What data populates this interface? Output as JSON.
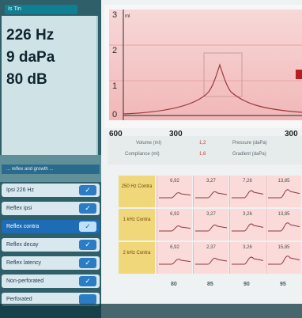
{
  "left_panel": {
    "tab_label": "Is Tin",
    "readout": [
      "226 Hz",
      "9 daPa",
      "80 dB"
    ],
    "list_header": "... reflex and growth ...",
    "items": [
      {
        "label": "Ipsi 226 Hz",
        "checked": true,
        "selected": false
      },
      {
        "label": "Reflex ipsi",
        "checked": true,
        "selected": false
      },
      {
        "label": "Reflex contra",
        "checked": true,
        "selected": true
      },
      {
        "label": "Reflex decay",
        "checked": true,
        "selected": false
      },
      {
        "label": "Reflex latency",
        "checked": true,
        "selected": false
      },
      {
        "label": "Non-perforated",
        "checked": true,
        "selected": false
      },
      {
        "label": "Perforated",
        "checked": false,
        "selected": false
      }
    ]
  },
  "tymp_graph": {
    "y_ticks": [
      "3",
      "2",
      "1",
      "0"
    ],
    "x_ticks": [
      "600",
      "300",
      "300"
    ],
    "y_unit": "ml"
  },
  "summary": {
    "rows": [
      {
        "left": "Volume (ml)",
        "left_value": "1,2",
        "right": "Pressure (daPa)"
      },
      {
        "left": "Compliance (ml)",
        "left_value": "1,6",
        "right": "Gradient (daPa)"
      }
    ]
  },
  "reflex_table": {
    "rows": [
      {
        "label": "250 Hz Contra",
        "values": [
          "6,92",
          "3,27",
          "7,26",
          "13,85"
        ]
      },
      {
        "label": "1 kHz Contra",
        "values": [
          "6,92",
          "3,27",
          "3,26",
          "13,85"
        ]
      },
      {
        "label": "2 kHz Contra",
        "values": [
          "6,92",
          "2,37",
          "3,26",
          "15,85"
        ]
      }
    ],
    "totals": [
      "80",
      "85",
      "90",
      "95"
    ]
  },
  "colors": {
    "accent": "#2a7cc4",
    "curve": "#9a3b3b",
    "graph_fill": "#f4c7c7"
  }
}
